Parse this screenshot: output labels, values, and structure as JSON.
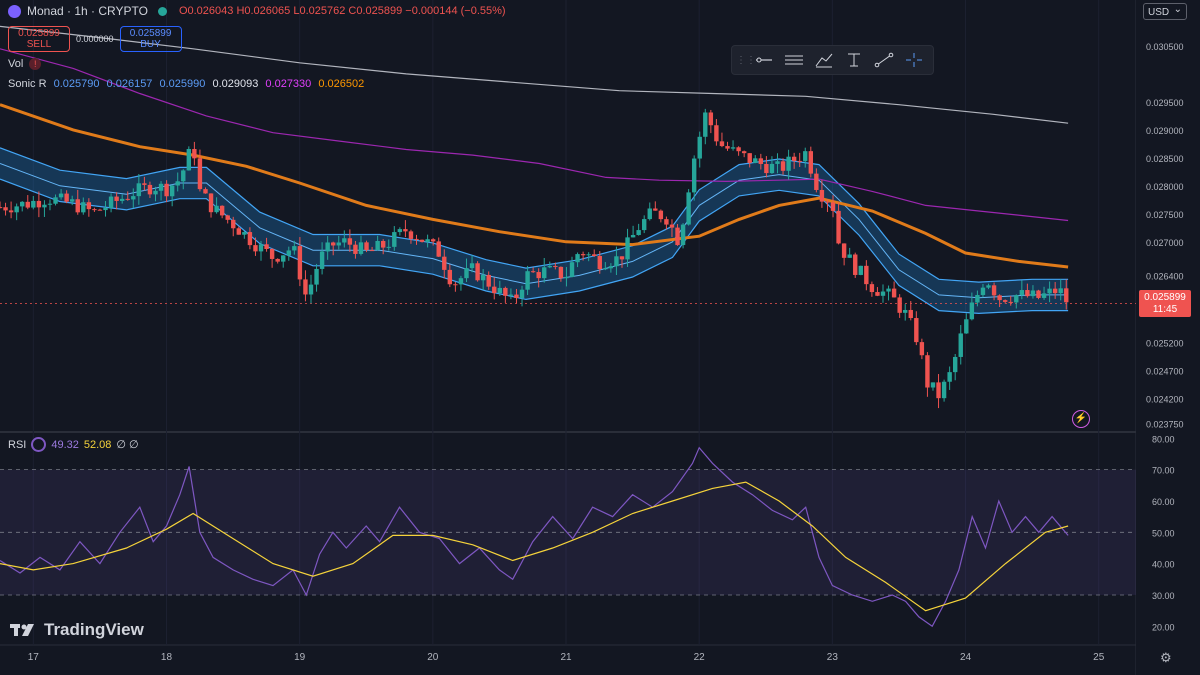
{
  "header": {
    "symbol": "Monad · 1h · CRYPTO",
    "ohlc": {
      "o": "O0.026043",
      "h": "H0.026065",
      "l": "L0.025762",
      "c": "C0.025899",
      "chg": "−0.000144 (−0.55%)"
    },
    "sell_price": "0.025899",
    "sell_label": "SELL",
    "spread": "0.000000",
    "buy_price": "0.025899",
    "buy_label": "BUY",
    "vol_label": "Vol",
    "sonic_label": "Sonic R",
    "sonic_values": [
      {
        "text": "0.025790",
        "color": "#5b9bf5"
      },
      {
        "text": "0.026157",
        "color": "#5b9bf5"
      },
      {
        "text": "0.025990",
        "color": "#5b9bf5"
      },
      {
        "text": "0.029093",
        "color": "#e0e3eb"
      },
      {
        "text": "0.027330",
        "color": "#e040fb"
      },
      {
        "text": "0.026502",
        "color": "#ff9800"
      }
    ],
    "rsi_label": "RSI",
    "rsi_value": "49.32",
    "rsi_ma_value": "52.08",
    "rsi_extra": "∅ ∅"
  },
  "currency": "USD",
  "brand": "TradingView",
  "last_price": "0.025899",
  "countdown": "11:45",
  "toolbar_icons": [
    "horizontal-line-icon",
    "parallel-channel-icon",
    "brush-icon",
    "text-cursor-icon",
    "trend-line-icon",
    "crosshair-icon"
  ],
  "colors": {
    "up": "#26a69a",
    "down": "#ef5350",
    "band": "#2196f3",
    "ema_orange": "#e07b1a",
    "ema_purple": "#9c27b0",
    "ema_gray": "#b2b5be",
    "rsi": "#7e57c2",
    "rsi_ma": "#f5d33b"
  },
  "chart_data": [
    {
      "type": "candlestick",
      "title": "Monad · 1h · CRYPTO",
      "x_ticks": [
        "17",
        "18",
        "19",
        "20",
        "21",
        "22",
        "23",
        "24",
        "25"
      ],
      "y_ticks": [
        0.0305,
        0.0295,
        0.029,
        0.0285,
        0.028,
        0.0275,
        0.027,
        0.0264,
        0.0252,
        0.0247,
        0.0242,
        0.02375
      ],
      "y_tick_labels": [
        "0.030500",
        "0.029500",
        "0.029000",
        "0.028500",
        "0.028000",
        "0.027500",
        "0.027000",
        "0.026400",
        "0.025200",
        "0.024700",
        "0.024200",
        "0.023750"
      ],
      "x_range": [
        16.75,
        25.25
      ],
      "ylim": [
        0.0236,
        0.031
      ],
      "close_path": [
        [
          16.75,
          0.02762
        ],
        [
          16.95,
          0.02768
        ],
        [
          17.1,
          0.02778
        ],
        [
          17.3,
          0.02768
        ],
        [
          17.45,
          0.02752
        ],
        [
          17.6,
          0.0277
        ],
        [
          17.75,
          0.02788
        ],
        [
          17.9,
          0.028
        ],
        [
          18.0,
          0.02795
        ],
        [
          18.1,
          0.02812
        ],
        [
          18.2,
          0.02875
        ],
        [
          18.25,
          0.0279
        ],
        [
          18.35,
          0.0276
        ],
        [
          18.5,
          0.02732
        ],
        [
          18.65,
          0.027
        ],
        [
          18.8,
          0.02672
        ],
        [
          18.95,
          0.0269
        ],
        [
          19.05,
          0.026
        ],
        [
          19.15,
          0.0267
        ],
        [
          19.25,
          0.02695
        ],
        [
          19.35,
          0.027
        ],
        [
          19.5,
          0.0268
        ],
        [
          19.65,
          0.02695
        ],
        [
          19.8,
          0.02722
        ],
        [
          19.95,
          0.027
        ],
        [
          20.05,
          0.0268
        ],
        [
          20.15,
          0.02625
        ],
        [
          20.3,
          0.0265
        ],
        [
          20.45,
          0.0262
        ],
        [
          20.6,
          0.0259
        ],
        [
          20.7,
          0.0264
        ],
        [
          20.85,
          0.02648
        ],
        [
          21.0,
          0.0264
        ],
        [
          21.1,
          0.02685
        ],
        [
          21.25,
          0.02665
        ],
        [
          21.4,
          0.0267
        ],
        [
          21.55,
          0.02728
        ],
        [
          21.65,
          0.02752
        ],
        [
          21.75,
          0.02745
        ],
        [
          21.85,
          0.027
        ],
        [
          21.95,
          0.0284
        ],
        [
          22.05,
          0.0293
        ],
        [
          22.15,
          0.02875
        ],
        [
          22.3,
          0.02855
        ],
        [
          22.45,
          0.0284
        ],
        [
          22.6,
          0.0283
        ],
        [
          22.7,
          0.02845
        ],
        [
          22.8,
          0.0286
        ],
        [
          22.9,
          0.0279
        ],
        [
          23.0,
          0.0277
        ],
        [
          23.05,
          0.02695
        ],
        [
          23.15,
          0.0266
        ],
        [
          23.3,
          0.0262
        ],
        [
          23.45,
          0.026
        ],
        [
          23.55,
          0.0257
        ],
        [
          23.65,
          0.0252
        ],
        [
          23.7,
          0.0245
        ],
        [
          23.8,
          0.02425
        ],
        [
          23.9,
          0.0247
        ],
        [
          23.95,
          0.0252
        ],
        [
          24.05,
          0.02585
        ],
        [
          24.15,
          0.02638
        ],
        [
          24.25,
          0.026
        ],
        [
          24.4,
          0.02605
        ],
        [
          24.55,
          0.026
        ],
        [
          24.7,
          0.02615
        ],
        [
          24.77,
          0.0259
        ]
      ],
      "series": [
        {
          "name": "Sonic R",
          "values": [
            [
              16.75,
              0.0284
            ],
            [
              17.2,
              0.028
            ],
            [
              17.7,
              0.02785
            ],
            [
              18.1,
              0.02805
            ],
            [
              18.3,
              0.02805
            ],
            [
              18.7,
              0.02725
            ],
            [
              19.1,
              0.02685
            ],
            [
              19.6,
              0.02685
            ],
            [
              20.0,
              0.0267
            ],
            [
              20.4,
              0.0264
            ],
            [
              20.7,
              0.02625
            ],
            [
              21.1,
              0.0264
            ],
            [
              21.5,
              0.02665
            ],
            [
              21.8,
              0.027
            ],
            [
              22.0,
              0.02765
            ],
            [
              22.3,
              0.0281
            ],
            [
              22.6,
              0.0282
            ],
            [
              22.9,
              0.0281
            ],
            [
              23.2,
              0.0274
            ],
            [
              23.5,
              0.0265
            ],
            [
              23.8,
              0.02605
            ],
            [
              24.1,
              0.026
            ],
            [
              24.5,
              0.02605
            ],
            [
              24.77,
              0.02605
            ]
          ]
        },
        {
          "name": "EMA orange",
          "values": [
            [
              16.75,
              0.02945
            ],
            [
              17.3,
              0.029
            ],
            [
              17.8,
              0.0287
            ],
            [
              18.2,
              0.02855
            ],
            [
              18.6,
              0.02835
            ],
            [
              19.0,
              0.02805
            ],
            [
              19.5,
              0.02765
            ],
            [
              20.0,
              0.0274
            ],
            [
              20.5,
              0.02718
            ],
            [
              21.0,
              0.027
            ],
            [
              21.5,
              0.02695
            ],
            [
              22.0,
              0.0271
            ],
            [
              22.3,
              0.0274
            ],
            [
              22.6,
              0.02765
            ],
            [
              22.9,
              0.02778
            ],
            [
              23.3,
              0.02755
            ],
            [
              23.7,
              0.02715
            ],
            [
              24.0,
              0.0268
            ],
            [
              24.4,
              0.02665
            ],
            [
              24.77,
              0.02655
            ]
          ]
        },
        {
          "name": "EMA purple",
          "values": [
            [
              16.75,
              0.03045
            ],
            [
              17.3,
              0.0301
            ],
            [
              17.8,
              0.02965
            ],
            [
              18.3,
              0.02925
            ],
            [
              18.8,
              0.02895
            ],
            [
              19.3,
              0.0288
            ],
            [
              19.8,
              0.02865
            ],
            [
              20.3,
              0.02855
            ],
            [
              20.8,
              0.0284
            ],
            [
              21.3,
              0.02815
            ],
            [
              21.7,
              0.0281
            ],
            [
              22.2,
              0.02808
            ],
            [
              22.6,
              0.0281
            ],
            [
              22.9,
              0.02812
            ],
            [
              23.3,
              0.0279
            ],
            [
              23.7,
              0.02765
            ],
            [
              24.1,
              0.02755
            ],
            [
              24.5,
              0.02745
            ],
            [
              24.77,
              0.02738
            ]
          ]
        },
        {
          "name": "EMA gray",
          "values": [
            [
              16.75,
              0.03085
            ],
            [
              17.5,
              0.03065
            ],
            [
              18.2,
              0.03045
            ],
            [
              19.0,
              0.0302
            ],
            [
              19.8,
              0.03
            ],
            [
              20.6,
              0.02985
            ],
            [
              21.4,
              0.0297
            ],
            [
              22.1,
              0.02965
            ],
            [
              22.8,
              0.0296
            ],
            [
              23.5,
              0.02945
            ],
            [
              24.2,
              0.02928
            ],
            [
              24.77,
              0.02912
            ]
          ]
        }
      ]
    },
    {
      "type": "line",
      "title": "RSI",
      "y_ticks": [
        20.0,
        30.0,
        40.0,
        50.0,
        60.0,
        70.0,
        80.0
      ],
      "y_tick_labels": [
        "20.00",
        "30.00",
        "40.00",
        "50.00",
        "60.00",
        "70.00",
        "80.00"
      ],
      "ylim": [
        15,
        82
      ],
      "bands": [
        30,
        70
      ],
      "midline": 50,
      "series": [
        {
          "name": "RSI",
          "values": [
            [
              16.75,
              41
            ],
            [
              16.9,
              37
            ],
            [
              17.05,
              42
            ],
            [
              17.2,
              38
            ],
            [
              17.35,
              47
            ],
            [
              17.5,
              40
            ],
            [
              17.65,
              50
            ],
            [
              17.8,
              58
            ],
            [
              17.9,
              47
            ],
            [
              18.0,
              52
            ],
            [
              18.1,
              62
            ],
            [
              18.17,
              71
            ],
            [
              18.25,
              50
            ],
            [
              18.35,
              42
            ],
            [
              18.5,
              38
            ],
            [
              18.65,
              35
            ],
            [
              18.8,
              33
            ],
            [
              18.95,
              38
            ],
            [
              19.05,
              30
            ],
            [
              19.15,
              43
            ],
            [
              19.25,
              50
            ],
            [
              19.35,
              45
            ],
            [
              19.5,
              52
            ],
            [
              19.6,
              47
            ],
            [
              19.75,
              58
            ],
            [
              19.9,
              50
            ],
            [
              20.05,
              48
            ],
            [
              20.2,
              40
            ],
            [
              20.35,
              45
            ],
            [
              20.5,
              38
            ],
            [
              20.6,
              35
            ],
            [
              20.75,
              47
            ],
            [
              20.9,
              55
            ],
            [
              21.05,
              48
            ],
            [
              21.2,
              58
            ],
            [
              21.35,
              55
            ],
            [
              21.5,
              62
            ],
            [
              21.65,
              58
            ],
            [
              21.8,
              63
            ],
            [
              21.95,
              72
            ],
            [
              22.0,
              77
            ],
            [
              22.1,
              72
            ],
            [
              22.25,
              66
            ],
            [
              22.4,
              62
            ],
            [
              22.55,
              57
            ],
            [
              22.7,
              54
            ],
            [
              22.8,
              58
            ],
            [
              22.9,
              42
            ],
            [
              23.0,
              33
            ],
            [
              23.15,
              30
            ],
            [
              23.3,
              28
            ],
            [
              23.45,
              30
            ],
            [
              23.55,
              28
            ],
            [
              23.65,
              23
            ],
            [
              23.75,
              20
            ],
            [
              23.85,
              28
            ],
            [
              23.95,
              38
            ],
            [
              24.05,
              55
            ],
            [
              24.15,
              45
            ],
            [
              24.25,
              60
            ],
            [
              24.35,
              50
            ],
            [
              24.45,
              55
            ],
            [
              24.55,
              50
            ],
            [
              24.65,
              55
            ],
            [
              24.77,
              49
            ]
          ]
        },
        {
          "name": "RSI MA",
          "values": [
            [
              16.75,
              40
            ],
            [
              17.0,
              38
            ],
            [
              17.3,
              40
            ],
            [
              17.7,
              45
            ],
            [
              18.0,
              51
            ],
            [
              18.2,
              56
            ],
            [
              18.5,
              48
            ],
            [
              18.8,
              40
            ],
            [
              19.1,
              36
            ],
            [
              19.4,
              40
            ],
            [
              19.7,
              49
            ],
            [
              20.0,
              49
            ],
            [
              20.3,
              46
            ],
            [
              20.6,
              41
            ],
            [
              20.9,
              45
            ],
            [
              21.2,
              50
            ],
            [
              21.5,
              56
            ],
            [
              21.8,
              60
            ],
            [
              22.1,
              64
            ],
            [
              22.35,
              66
            ],
            [
              22.6,
              60
            ],
            [
              22.85,
              52
            ],
            [
              23.1,
              42
            ],
            [
              23.4,
              34
            ],
            [
              23.7,
              25
            ],
            [
              24.0,
              29
            ],
            [
              24.3,
              40
            ],
            [
              24.6,
              50
            ],
            [
              24.77,
              52
            ]
          ]
        }
      ]
    }
  ]
}
